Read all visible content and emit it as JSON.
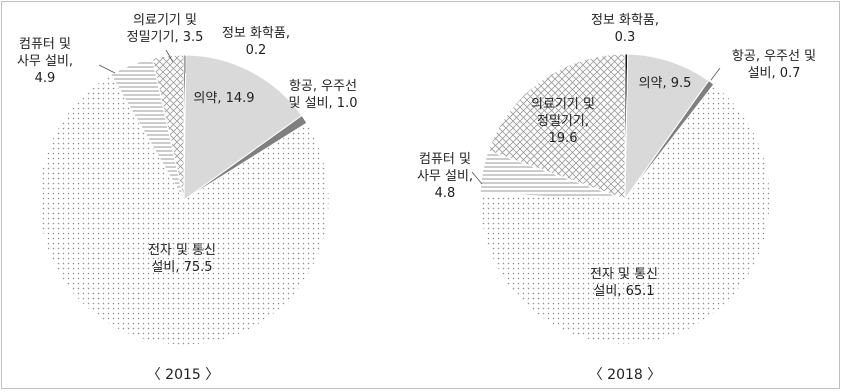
{
  "chart_data": [
    {
      "type": "pie",
      "caption": "〈 2015 〉",
      "slices": [
        {
          "name": "정보 화학품",
          "value": 0.2,
          "label": [
            "정보 화학품,",
            "0.2"
          ],
          "fill": "black"
        },
        {
          "name": "의약",
          "value": 14.9,
          "label": [
            "의약, 14.9"
          ],
          "fill": "solid-light"
        },
        {
          "name": "항공, 우주선 및 설비",
          "value": 1.0,
          "label": [
            "항공, 우주선",
            "및 설비, 1.0"
          ],
          "fill": "solid-dark"
        },
        {
          "name": "전자 및 통신 설비",
          "value": 75.5,
          "label": [
            "전자 및 통신",
            "설비, 75.5"
          ],
          "fill": "dots"
        },
        {
          "name": "컴퓨터 및 사무 설비",
          "value": 4.9,
          "label": [
            "컴퓨터 및",
            "사무 설비,",
            "4.9"
          ],
          "fill": "hlines"
        },
        {
          "name": "의료기기 및 정밀기기",
          "value": 3.5,
          "label": [
            "의료기기 및",
            "정밀기기, 3.5"
          ],
          "fill": "cross"
        }
      ]
    },
    {
      "type": "pie",
      "caption": "〈 2018 〉",
      "slices": [
        {
          "name": "정보 화학품",
          "value": 0.3,
          "label": [
            "정보 화학품,",
            "0.3"
          ],
          "fill": "black"
        },
        {
          "name": "의약",
          "value": 9.5,
          "label": [
            "의약, 9.5"
          ],
          "fill": "solid-light"
        },
        {
          "name": "항공, 우주선 및 설비",
          "value": 0.7,
          "label": [
            "항공, 우주선 및",
            "설비, 0.7"
          ],
          "fill": "solid-dark"
        },
        {
          "name": "전자 및 통신 설비",
          "value": 65.1,
          "label": [
            "전자 및 통신",
            "설비, 65.1"
          ],
          "fill": "dots"
        },
        {
          "name": "컴퓨터 및 사무 설비",
          "value": 4.8,
          "label": [
            "컴퓨터 및",
            "사무 설비,",
            "4.8"
          ],
          "fill": "hlines"
        },
        {
          "name": "의료기기 및 정밀기기",
          "value": 19.6,
          "label": [
            "의료기기 및",
            "정밀기기,",
            "19.6"
          ],
          "fill": "cross"
        }
      ]
    }
  ]
}
